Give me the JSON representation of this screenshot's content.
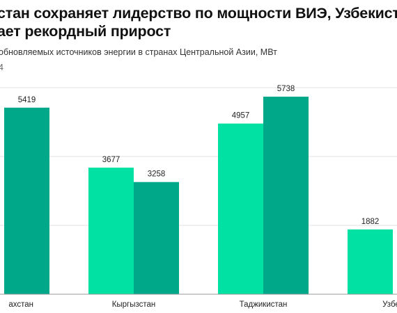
{
  "title_line1": "стан сохраняет лидерство по мощности ВИЭ, Узбекистан",
  "title_line2": "ает рекордный прирост",
  "subtitle": "обновляемых источников энергии в странах Центральной Азии, МВт",
  "subtitle_note": "4",
  "colors": {
    "series1": "#00e1a3",
    "series2": "#00a88a",
    "grid": "#e2e2e2",
    "axis": "#9a9a9a",
    "label": "#222222"
  },
  "chart_data": {
    "type": "bar",
    "categories": [
      "ахстан",
      "Кыргызстан",
      "Таджикистан",
      "Узбек"
    ],
    "series": [
      {
        "values": [
          null,
          3677,
          4957,
          1882
        ]
      },
      {
        "values": [
          5419,
          3258,
          5738,
          null
        ]
      }
    ],
    "data_labels": [
      [
        null,
        "3677",
        "4957",
        "1882"
      ],
      [
        "5419",
        "3258",
        "5738",
        null
      ]
    ],
    "ylim": [
      0,
      7000
    ],
    "grid": true
  }
}
